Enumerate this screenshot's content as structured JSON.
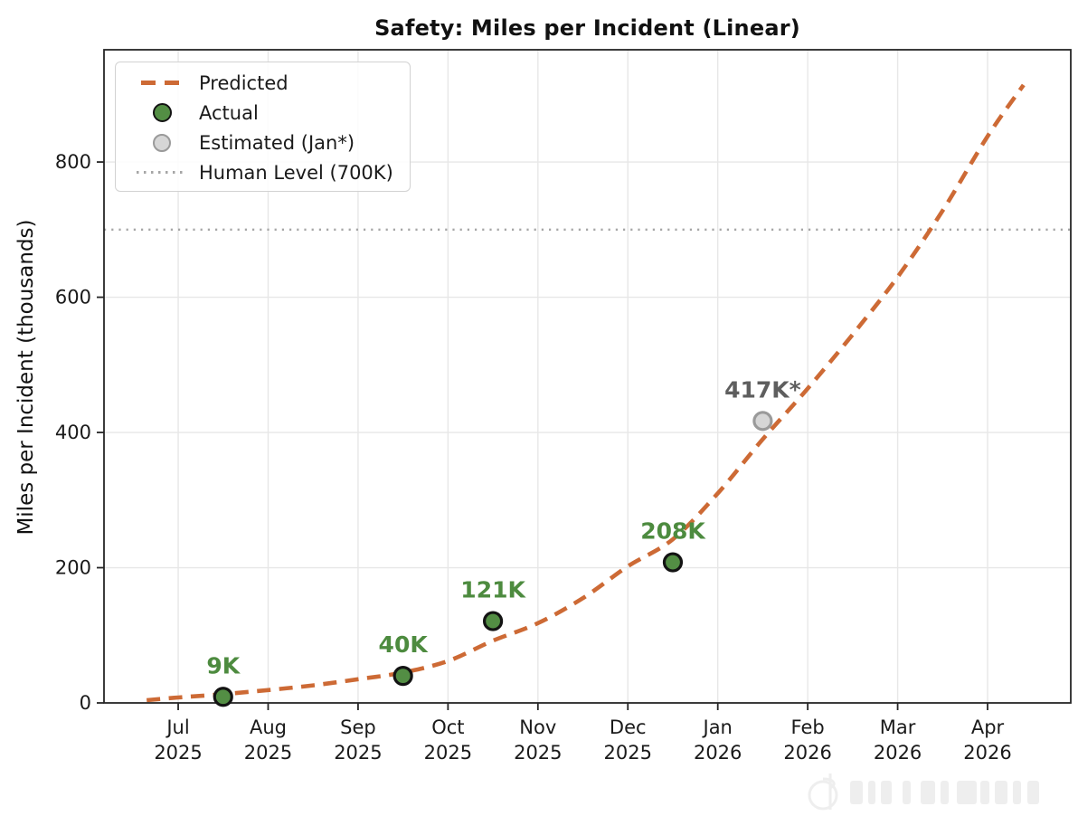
{
  "title": "Safety: Miles per Incident (Linear)",
  "colors": {
    "predicted_line": "#cd6a35",
    "actual_marker_fill": "#538e44",
    "actual_marker_edge": "#131313",
    "actual_label_text": "#4d8b3f",
    "estimated_marker_fill": "#d6d6d6",
    "estimated_marker_edge": "#9a9a9a",
    "estimated_label_text": "#5e5e5e",
    "human_level_line": "#a6a6a6",
    "grid": "#e7e7e7",
    "spine": "#262626",
    "tick_text": "#1a1a1a"
  },
  "watermark": {
    "visible": true
  },
  "chart_data": {
    "type": "line",
    "title": "Safety: Miles per Incident (Linear)",
    "xlabel": "",
    "ylabel": "Miles per Incident (thousands)",
    "grid": true,
    "x_tick_labels": [
      [
        "Jul",
        "2025"
      ],
      [
        "Aug",
        "2025"
      ],
      [
        "Sep",
        "2025"
      ],
      [
        "Oct",
        "2025"
      ],
      [
        "Nov",
        "2025"
      ],
      [
        "Dec",
        "2025"
      ],
      [
        "Jan",
        "2026"
      ],
      [
        "Feb",
        "2026"
      ],
      [
        "Mar",
        "2026"
      ],
      [
        "Apr",
        "2026"
      ]
    ],
    "y_ticks": [
      0,
      200,
      400,
      600,
      800
    ],
    "xlim_months": [
      -0.825,
      9.925
    ],
    "ylim": [
      0,
      966
    ],
    "human_level": {
      "value": 700,
      "label": "Human Level (700K)"
    },
    "legend": {
      "position": "upper-left",
      "items": [
        {
          "label": "Predicted",
          "swatch": "dashed-line",
          "color": "#cd6a35"
        },
        {
          "label": "Actual",
          "swatch": "circle",
          "color": "#538e44",
          "edge": "#131313"
        },
        {
          "label": "Estimated (Jan*)",
          "swatch": "circle",
          "color": "#d6d6d6",
          "edge": "#9a9a9a"
        },
        {
          "label": "Human Level (700K)",
          "swatch": "dotted-line",
          "color": "#a6a6a6"
        }
      ]
    },
    "series": [
      {
        "name": "Predicted",
        "style": "dashed-line",
        "color": "#cd6a35",
        "points_month_value": [
          [
            -0.35,
            4
          ],
          [
            0,
            8
          ],
          [
            0.5,
            13
          ],
          [
            1,
            19
          ],
          [
            1.5,
            26
          ],
          [
            2,
            35
          ],
          [
            2.5,
            45
          ],
          [
            3,
            62
          ],
          [
            3.5,
            92
          ],
          [
            4,
            118
          ],
          [
            4.5,
            155
          ],
          [
            5,
            202
          ],
          [
            5.5,
            242
          ],
          [
            6,
            310
          ],
          [
            6.5,
            390
          ],
          [
            7,
            465
          ],
          [
            7.5,
            545
          ],
          [
            8,
            630
          ],
          [
            8.5,
            728
          ],
          [
            9,
            838
          ],
          [
            9.4,
            914
          ]
        ]
      },
      {
        "name": "Actual",
        "style": "scatter",
        "fill": "#538e44",
        "edge": "#131313",
        "label_color": "#4d8b3f",
        "points": [
          {
            "month": "mid-Jul 2025",
            "m": 0.5,
            "value": 9,
            "label": "9K"
          },
          {
            "month": "mid-Sep 2025",
            "m": 2.5,
            "value": 40,
            "label": "40K"
          },
          {
            "month": "mid-Oct 2025",
            "m": 3.5,
            "value": 121,
            "label": "121K"
          },
          {
            "month": "mid-Dec 2025",
            "m": 5.5,
            "value": 208,
            "label": "208K"
          }
        ]
      },
      {
        "name": "Estimated",
        "style": "scatter",
        "fill": "#d6d6d6",
        "edge": "#9a9a9a",
        "label_color": "#5e5e5e",
        "points": [
          {
            "month": "mid-Jan 2026",
            "m": 6.5,
            "value": 417,
            "label": "417K*"
          }
        ]
      }
    ]
  }
}
